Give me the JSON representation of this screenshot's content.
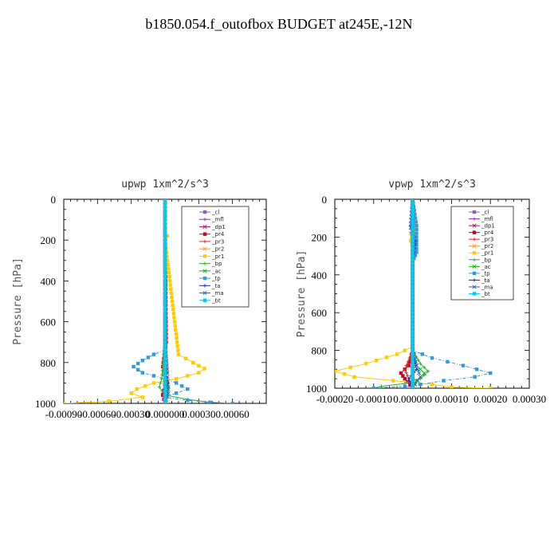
{
  "page_title": "b1850.054.f_outofbox  BUDGET at245E,-12N",
  "legend_entries": [
    {
      "name": "_cl",
      "color": "#8b5fb8"
    },
    {
      "name": "_mfl",
      "color": "#8a2be2"
    },
    {
      "name": "_dp1",
      "color": "#b01060"
    },
    {
      "name": "_pr4",
      "color": "#cc0022"
    },
    {
      "name": "_pr3",
      "color": "#ee2222"
    },
    {
      "name": "_pr2",
      "color": "#ff9933"
    },
    {
      "name": "_pr1",
      "color": "#ffcc00"
    },
    {
      "name": "_bp",
      "color": "#33aa33"
    },
    {
      "name": "_ac",
      "color": "#00bb00"
    },
    {
      "name": "_tp",
      "color": "#3399dd"
    },
    {
      "name": "_ta",
      "color": "#2222cc"
    },
    {
      "name": "_ma",
      "color": "#2266bb"
    },
    {
      "name": "_bt",
      "color": "#00ccee"
    }
  ],
  "chart_data": [
    {
      "type": "line",
      "title": "upwp   1xm^2/s^3",
      "ylabel": "Pressure [hPa]",
      "xlabel": "",
      "xlim": [
        -0.0009,
        0.0009
      ],
      "ylim": [
        1000,
        0
      ],
      "yticks": [
        0,
        200,
        400,
        600,
        800,
        1000
      ],
      "xtick_labels": [
        "-0.00090",
        "-0.00060",
        "-0.00030",
        "0.000000",
        "0.00030",
        "0.00060"
      ],
      "xtick_values": [
        -0.0009,
        -0.0006,
        -0.0003,
        0.0,
        0.0003,
        0.0006
      ],
      "legend_position": "top-right",
      "series": [
        {
          "name": "_cl",
          "x": [
            0,
            0
          ],
          "y": [
            0,
            1000
          ]
        },
        {
          "name": "_mfl",
          "x": [
            0,
            0
          ],
          "y": [
            0,
            1000
          ]
        },
        {
          "name": "_dp1",
          "x": [
            0,
            0
          ],
          "y": [
            0,
            1000
          ]
        },
        {
          "name": "_pr4",
          "x": [
            0,
            1e-05,
            -2e-05,
            2e-05,
            -2e-05,
            0
          ],
          "y": [
            0,
            700,
            820,
            900,
            960,
            1000
          ]
        },
        {
          "name": "_pr3",
          "x": [
            0,
            0,
            2e-05,
            -2e-05,
            0
          ],
          "y": [
            0,
            700,
            850,
            950,
            1000
          ]
        },
        {
          "name": "_pr2",
          "x": [
            0,
            0,
            0,
            0
          ],
          "y": [
            0,
            160,
            200,
            1000
          ]
        },
        {
          "name": "_pr1",
          "x": [
            0,
            0,
            2e-05,
            0,
            0.00012,
            0.00025,
            0.00035,
            0.0003,
            0.0001,
            -0.0001,
            -0.00025,
            -0.0003,
            -0.0002,
            -0.0005,
            -0.0009
          ],
          "y": [
            0,
            160,
            180,
            200,
            760,
            800,
            830,
            850,
            880,
            900,
            930,
            950,
            970,
            990,
            1000
          ]
        },
        {
          "name": "_bp",
          "x": [
            0,
            0,
            -3e-05,
            -5e-05,
            0,
            0.0002,
            0.0004,
            0.0006
          ],
          "y": [
            0,
            700,
            880,
            920,
            960,
            980,
            995,
            1000
          ]
        },
        {
          "name": "_ac",
          "x": [
            0,
            0,
            -1e-05,
            3e-05,
            0
          ],
          "y": [
            0,
            700,
            860,
            920,
            1000
          ]
        },
        {
          "name": "_tp",
          "x": [
            0,
            0,
            -0.0001,
            -0.0002,
            -0.00028,
            -0.0002,
            0,
            0.0001,
            0.0002,
            0.0001,
            0,
            0.0002,
            0.0004,
            0.0006
          ],
          "y": [
            0,
            740,
            760,
            790,
            820,
            850,
            880,
            900,
            930,
            950,
            970,
            985,
            995,
            1000
          ]
        },
        {
          "name": "_ta",
          "x": [
            0,
            0,
            1e-05,
            -1e-05,
            0
          ],
          "y": [
            0,
            750,
            850,
            950,
            1000
          ]
        },
        {
          "name": "_ma",
          "x": [
            0,
            0,
            2e-05,
            3e-05,
            0
          ],
          "y": [
            0,
            700,
            850,
            950,
            1000
          ]
        },
        {
          "name": "_bt",
          "x": [
            0,
            0
          ],
          "y": [
            0,
            1000
          ]
        }
      ]
    },
    {
      "type": "line",
      "title": "vpwp   1xm^2/s^3",
      "ylabel": "Pressure [hPa]",
      "xlabel": "",
      "xlim": [
        -0.0002,
        0.0003
      ],
      "ylim": [
        1000,
        0
      ],
      "yticks": [
        0,
        200,
        400,
        600,
        800,
        1000
      ],
      "xtick_labels": [
        "-0.00020",
        "-0.00010",
        "0.000000",
        "0.00010",
        "0.00020",
        "0.00030"
      ],
      "xtick_values": [
        -0.0002,
        -0.0001,
        0.0,
        0.0001,
        0.0002,
        0.0003
      ],
      "legend_position": "top-right",
      "series": [
        {
          "name": "_cl",
          "x": [
            0,
            0
          ],
          "y": [
            0,
            1000
          ]
        },
        {
          "name": "_mfl",
          "x": [
            0,
            0
          ],
          "y": [
            0,
            1000
          ]
        },
        {
          "name": "_dp1",
          "x": [
            0,
            0
          ],
          "y": [
            0,
            1000
          ]
        },
        {
          "name": "_pr4",
          "x": [
            0,
            0,
            -1e-05,
            -3e-05,
            -2e-05,
            0
          ],
          "y": [
            0,
            800,
            880,
            920,
            950,
            1000
          ]
        },
        {
          "name": "_pr3",
          "x": [
            0,
            0,
            -2e-05,
            -1e-05,
            0
          ],
          "y": [
            0,
            800,
            900,
            950,
            1000
          ]
        },
        {
          "name": "_pr2",
          "x": [
            0,
            5e-06,
            -5e-06,
            3e-06,
            0,
            0
          ],
          "y": [
            0,
            140,
            180,
            230,
            280,
            1000
          ]
        },
        {
          "name": "_pr1",
          "x": [
            0,
            0,
            5e-06,
            -5e-06,
            5e-06,
            0,
            0,
            -4e-05,
            -0.00012,
            -0.0002,
            -0.00015,
            -5e-05,
            5e-05,
            0.0001,
            0.0002
          ],
          "y": [
            0,
            120,
            160,
            220,
            280,
            320,
            780,
            820,
            870,
            910,
            940,
            960,
            980,
            995,
            1000
          ]
        },
        {
          "name": "_bp",
          "x": [
            0,
            0,
            2e-05,
            4e-05,
            2e-05,
            -2e-05,
            -8e-05,
            -0.0001
          ],
          "y": [
            0,
            800,
            870,
            910,
            950,
            975,
            990,
            1000
          ]
        },
        {
          "name": "_ac",
          "x": [
            0,
            0,
            1e-05,
            3e-05,
            1e-05,
            0
          ],
          "y": [
            0,
            800,
            880,
            920,
            960,
            1000
          ]
        },
        {
          "name": "_tp",
          "x": [
            0,
            1e-05,
            1e-05,
            0,
            0,
            5e-05,
            0.00013,
            0.0002,
            0.00016,
            8e-05,
            2e-05,
            -2e-05,
            -0.0001
          ],
          "y": [
            0,
            140,
            280,
            330,
            800,
            840,
            880,
            920,
            940,
            960,
            980,
            990,
            1000
          ]
        },
        {
          "name": "_ta",
          "x": [
            0,
            -5e-06,
            5e-06,
            0,
            0,
            1e-05,
            -1e-05,
            0
          ],
          "y": [
            0,
            140,
            240,
            320,
            800,
            900,
            950,
            1000
          ]
        },
        {
          "name": "_ma",
          "x": [
            0,
            -5e-06,
            8e-06,
            0,
            0,
            1e-05,
            2e-05,
            0
          ],
          "y": [
            0,
            150,
            220,
            320,
            800,
            880,
            940,
            1000
          ]
        },
        {
          "name": "_bt",
          "x": [
            0,
            0
          ],
          "y": [
            0,
            1000
          ]
        }
      ]
    }
  ]
}
